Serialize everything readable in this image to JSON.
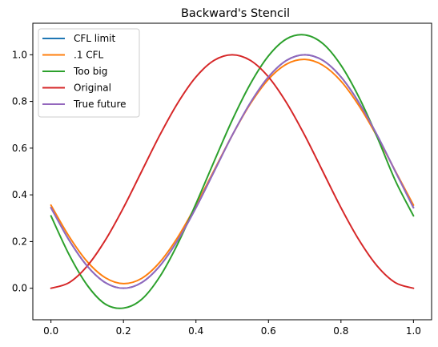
{
  "chart_data": {
    "type": "line",
    "title": "Backward's Stencil",
    "xlabel": "",
    "ylabel": "",
    "xlim": [
      -0.05,
      1.05
    ],
    "ylim": [
      -0.135,
      1.135
    ],
    "x_ticks": [
      0.0,
      0.2,
      0.4,
      0.6,
      0.8,
      1.0
    ],
    "x_tick_labels": [
      "0.0",
      "0.2",
      "0.4",
      "0.6",
      "0.8",
      "1.0"
    ],
    "y_ticks": [
      0.0,
      0.2,
      0.4,
      0.6,
      0.8,
      1.0
    ],
    "y_tick_labels": [
      "0.0",
      "0.2",
      "0.4",
      "0.6",
      "0.8",
      "1.0"
    ],
    "grid": false,
    "legend_position": "top-left",
    "series": [
      {
        "name": "CFL limit",
        "color": "#1f77b4",
        "x": [
          0.0,
          0.05,
          0.1,
          0.15,
          0.2,
          0.25,
          0.3,
          0.35,
          0.4,
          0.45,
          0.5,
          0.55,
          0.6,
          0.65,
          0.7,
          0.75,
          0.8,
          0.85,
          0.9,
          0.95,
          1.0
        ],
        "y": [
          0.345,
          0.206,
          0.095,
          0.024,
          0.0,
          0.024,
          0.095,
          0.206,
          0.345,
          0.5,
          0.655,
          0.794,
          0.905,
          0.976,
          1.0,
          0.976,
          0.905,
          0.794,
          0.655,
          0.5,
          0.345
        ]
      },
      {
        "name": ".1 CFL",
        "color": "#ff7f0e",
        "x": [
          0.0,
          0.05,
          0.1,
          0.15,
          0.2,
          0.25,
          0.3,
          0.35,
          0.4,
          0.45,
          0.5,
          0.55,
          0.6,
          0.65,
          0.7,
          0.75,
          0.8,
          0.85,
          0.9,
          0.95,
          1.0
        ],
        "y": [
          0.356,
          0.222,
          0.114,
          0.045,
          0.02,
          0.042,
          0.111,
          0.219,
          0.355,
          0.505,
          0.655,
          0.79,
          0.895,
          0.96,
          0.98,
          0.955,
          0.887,
          0.781,
          0.649,
          0.502,
          0.356
        ]
      },
      {
        "name": "Too big",
        "color": "#2ca02c",
        "x": [
          0.0,
          0.05,
          0.1,
          0.15,
          0.2,
          0.25,
          0.3,
          0.35,
          0.4,
          0.45,
          0.5,
          0.55,
          0.6,
          0.65,
          0.7,
          0.75,
          0.8,
          0.85,
          0.9,
          0.95,
          1.0
        ],
        "y": [
          0.31,
          0.144,
          0.013,
          -0.068,
          -0.085,
          -0.048,
          0.049,
          0.191,
          0.362,
          0.543,
          0.72,
          0.875,
          0.995,
          1.068,
          1.085,
          1.048,
          0.955,
          0.817,
          0.647,
          0.461,
          0.31
        ]
      },
      {
        "name": "Original",
        "color": "#d62728",
        "x": [
          0.0,
          0.05,
          0.1,
          0.15,
          0.2,
          0.25,
          0.3,
          0.35,
          0.4,
          0.45,
          0.5,
          0.55,
          0.6,
          0.65,
          0.7,
          0.75,
          0.8,
          0.85,
          0.9,
          0.95,
          1.0
        ],
        "y": [
          0.0,
          0.024,
          0.095,
          0.206,
          0.345,
          0.5,
          0.655,
          0.794,
          0.905,
          0.976,
          1.0,
          0.976,
          0.905,
          0.794,
          0.655,
          0.5,
          0.345,
          0.206,
          0.095,
          0.024,
          0.0
        ]
      },
      {
        "name": "True future",
        "color": "#9467bd",
        "x": [
          0.0,
          0.05,
          0.1,
          0.15,
          0.2,
          0.25,
          0.3,
          0.35,
          0.4,
          0.45,
          0.5,
          0.55,
          0.6,
          0.65,
          0.7,
          0.75,
          0.8,
          0.85,
          0.9,
          0.95,
          1.0
        ],
        "y": [
          0.345,
          0.206,
          0.095,
          0.024,
          0.0,
          0.024,
          0.095,
          0.206,
          0.345,
          0.5,
          0.655,
          0.794,
          0.905,
          0.976,
          1.0,
          0.976,
          0.905,
          0.794,
          0.655,
          0.5,
          0.345
        ]
      }
    ]
  }
}
